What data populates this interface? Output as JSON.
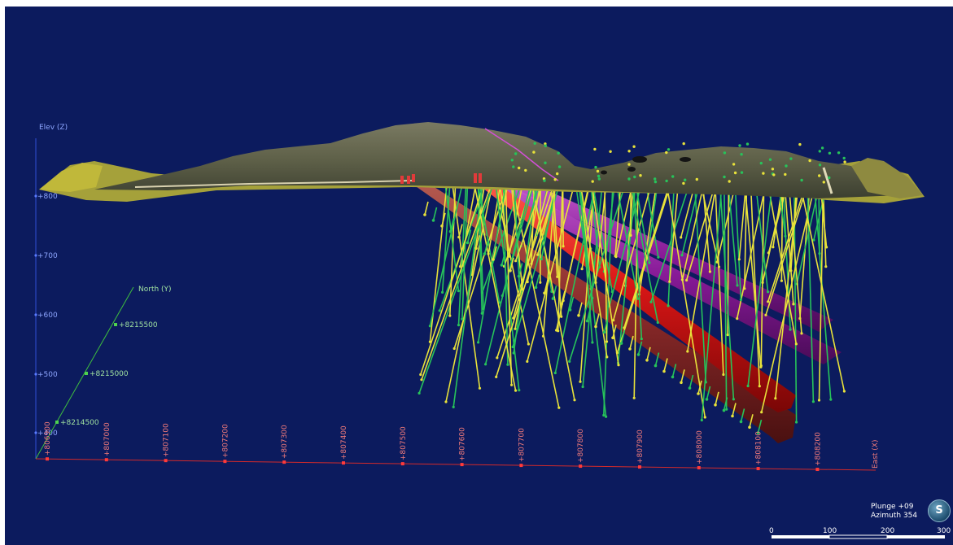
{
  "axes": {
    "elev_label": "Elev (Z)",
    "north_label": "North (Y)",
    "east_label": "East (X)",
    "elev_ticks": [
      "+800",
      "+700",
      "+600",
      "+500",
      "+400"
    ],
    "north_ticks": [
      "+8214500",
      "+8215000",
      "+8215500"
    ],
    "east_ticks": [
      "+806900",
      "+807000",
      "+807100",
      "+807200",
      "+807300",
      "+807400",
      "+807500",
      "+807600",
      "+807700",
      "+807800",
      "+807900",
      "+808000",
      "+808100",
      "+808200"
    ]
  },
  "navigation": {
    "plunge": "Plunge +09",
    "azimuth": "Azimuth 354",
    "compass_label": "S"
  },
  "scale_bar": {
    "ticks": [
      "0",
      "100",
      "200",
      "300"
    ]
  },
  "colors": {
    "background": "#0c1b5e",
    "elev_axis": "#2f4fd6",
    "north_axis": "#3fbf3f",
    "east_axis": "#d42a2a",
    "ore_red": "#d81616",
    "ore_dark_red": "#8a2a2a",
    "ore_magenta": "#9a1fa0",
    "drill_green": "#27c35a",
    "drill_yellow": "#e8e23a"
  }
}
